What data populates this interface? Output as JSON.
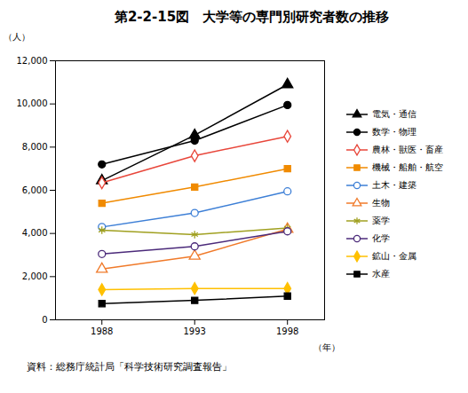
{
  "chart_data": {
    "type": "line",
    "title": "第2-2-15図　大学等の専門別研究者数の推移",
    "xlabel": "（年）",
    "ylabel": "（人）",
    "caption": "資料：総務庁統計局「科学技術研究調査報告」",
    "x": [
      1988,
      1993,
      1998
    ],
    "xlim": [
      1985.5,
      2000
    ],
    "xticks": [
      1988,
      1993,
      1998
    ],
    "ylim": [
      0,
      12000
    ],
    "yticks": [
      {
        "value": 0,
        "label": "0"
      },
      {
        "value": 2000,
        "label": "2,000"
      },
      {
        "value": 4000,
        "label": "4,000"
      },
      {
        "value": 6000,
        "label": "6,000"
      },
      {
        "value": 8000,
        "label": "8,000"
      },
      {
        "value": 10000,
        "label": "10,000"
      },
      {
        "value": 12000,
        "label": "12,000"
      }
    ],
    "grid": false,
    "legend": "right",
    "series": [
      {
        "name": "電気・通信",
        "color": "#000000",
        "marker": "filled_triangle",
        "values": [
          6450,
          8550,
          10900
        ]
      },
      {
        "name": "数学・物理",
        "color": "#000000",
        "marker": "filled_circle",
        "values": [
          7200,
          8300,
          9950
        ]
      },
      {
        "name": "農林・獣医・畜産",
        "color": "#e8463a",
        "marker": "open_diamond",
        "values": [
          6350,
          7600,
          8500
        ]
      },
      {
        "name": "機械・船舶・航空",
        "color": "#f08a00",
        "marker": "filled_square",
        "values": [
          5400,
          6150,
          7000
        ]
      },
      {
        "name": "土木・建築",
        "color": "#3d7fd6",
        "marker": "open_circle",
        "values": [
          4300,
          4950,
          5950
        ]
      },
      {
        "name": "生物",
        "color": "#f07a2a",
        "marker": "open_triangle",
        "values": [
          2350,
          2950,
          4200
        ]
      },
      {
        "name": "薬学",
        "color": "#a0a020",
        "marker": "open_asterisk",
        "values": [
          4150,
          3950,
          4250
        ]
      },
      {
        "name": "化学",
        "color": "#4b2a7a",
        "marker": "open_circle",
        "values": [
          3050,
          3400,
          4100
        ]
      },
      {
        "name": "鉱山・金属",
        "color": "#ffc000",
        "marker": "filled_diamond",
        "values": [
          1400,
          1450,
          1450
        ]
      },
      {
        "name": "水産",
        "color": "#000000",
        "marker": "filled_square",
        "values": [
          750,
          900,
          1100
        ]
      }
    ]
  }
}
